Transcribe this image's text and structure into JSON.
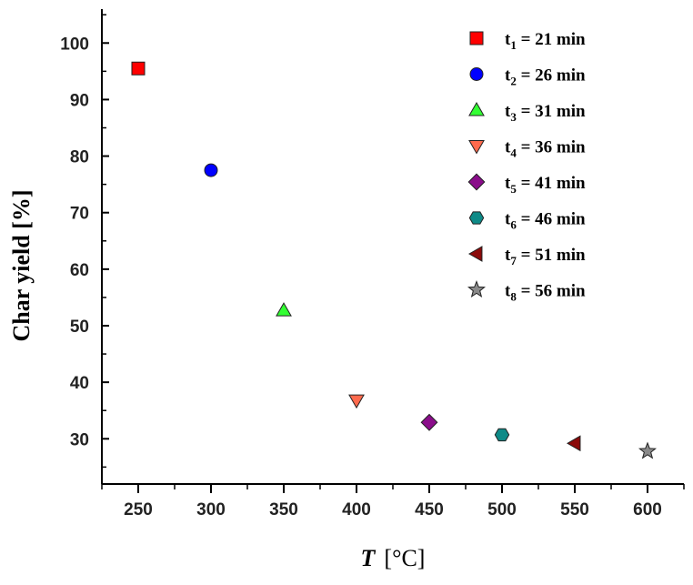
{
  "chart_data": {
    "type": "scatter",
    "title": "",
    "xlabel": {
      "symbol": "T",
      "unit": "[°C]"
    },
    "ylabel": "Char  yield  [%]",
    "xlim": [
      225,
      625
    ],
    "ylim": [
      22,
      106
    ],
    "x_ticks": [
      250,
      300,
      350,
      400,
      450,
      500,
      550,
      600
    ],
    "y_ticks": [
      30,
      40,
      50,
      60,
      70,
      80,
      90,
      100
    ],
    "grid": false,
    "legend_position": "top-right",
    "series": [
      {
        "name": "t1 = 21 min",
        "t_main": "t",
        "t_sub": "1",
        "rest": " = 21 min",
        "marker": "square",
        "color": "#ff0000",
        "x": 250,
        "y": 95.5
      },
      {
        "name": "t2 = 26 min",
        "t_main": "t",
        "t_sub": "2",
        "rest": " = 26 min",
        "marker": "circle",
        "color": "#0000ff",
        "x": 300,
        "y": 77.5
      },
      {
        "name": "t3 = 31 min",
        "t_main": "t",
        "t_sub": "3",
        "rest": " = 31 min",
        "marker": "triangle-up",
        "color": "#33ff33",
        "x": 350,
        "y": 52.7
      },
      {
        "name": "t4 = 36 min",
        "t_main": "t",
        "t_sub": "4",
        "rest": " = 36 min",
        "marker": "triangle-down",
        "color": "#ff6a4d",
        "x": 400,
        "y": 36.8
      },
      {
        "name": "t5 = 41 min",
        "t_main": "t",
        "t_sub": "5",
        "rest": " = 41 min",
        "marker": "diamond",
        "color": "#8a0d8a",
        "x": 450,
        "y": 32.9
      },
      {
        "name": "t6 = 46 min",
        "t_main": "t",
        "t_sub": "6",
        "rest": " = 46 min",
        "marker": "hexagon",
        "color": "#0e8a87",
        "x": 500,
        "y": 30.7
      },
      {
        "name": "t7 = 51 min",
        "t_main": "t",
        "t_sub": "7",
        "rest": " = 51 min",
        "marker": "triangle-left",
        "color": "#8b0a0a",
        "x": 550,
        "y": 29.2
      },
      {
        "name": "t8 = 56 min",
        "t_main": "t",
        "t_sub": "8",
        "rest": " = 56 min",
        "marker": "star",
        "color": "#8a8a8a",
        "x": 600,
        "y": 27.8
      }
    ]
  }
}
